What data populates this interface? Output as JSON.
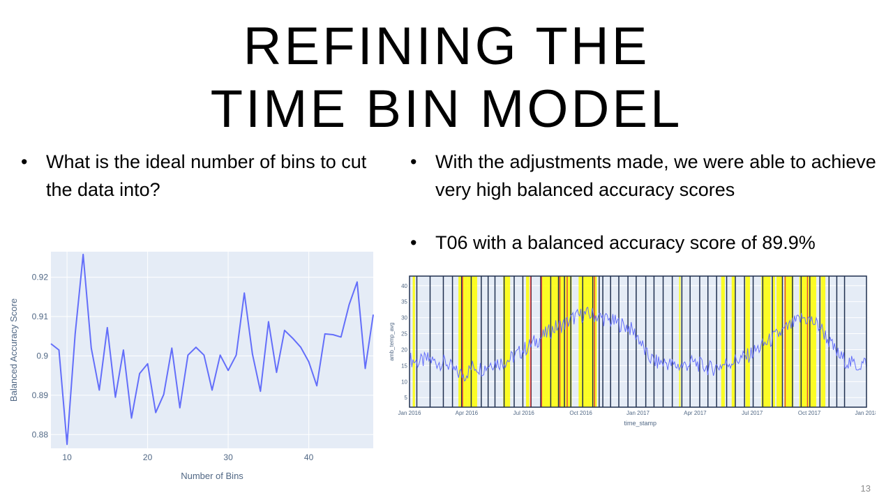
{
  "slide": {
    "title_line1": "REFINING THE",
    "title_line2": "TIME BIN MODEL",
    "left_bullets": [
      "What is the ideal number of bins to cut the data into?"
    ],
    "right_bullets": [
      "With the adjustments made, we were able to achieve very high balanced accuracy scores",
      "T06 with a balanced accuracy score of 89.9%"
    ],
    "slide_number": "13"
  },
  "chart_data": [
    {
      "type": "line",
      "xlabel": "Number of Bins",
      "ylabel": "Balanced Accuracy Score",
      "xlim": [
        8,
        48
      ],
      "ylim": [
        0.8765,
        0.9265
      ],
      "x_ticks": [
        10,
        20,
        30,
        40
      ],
      "y_ticks": [
        0.88,
        0.89,
        0.9,
        0.91,
        0.92
      ],
      "background": "#e5ecf6",
      "line_color": "#636efa",
      "x": [
        8,
        9,
        10,
        11,
        12,
        13,
        14,
        15,
        16,
        17,
        18,
        19,
        20,
        21,
        22,
        23,
        24,
        25,
        26,
        27,
        28,
        29,
        30,
        31,
        32,
        33,
        34,
        35,
        36,
        37,
        38,
        39,
        40,
        41,
        42,
        43,
        44,
        45,
        46,
        47,
        48
      ],
      "y": [
        0.9031,
        0.9015,
        0.8775,
        0.9055,
        0.9258,
        0.902,
        0.8913,
        0.9072,
        0.8895,
        0.9015,
        0.8842,
        0.8955,
        0.898,
        0.8856,
        0.8902,
        0.902,
        0.8868,
        0.9002,
        0.9022,
        0.9002,
        0.8913,
        0.9002,
        0.8963,
        0.9002,
        0.916,
        0.9005,
        0.891,
        0.9087,
        0.8958,
        0.9065,
        0.9045,
        0.9022,
        0.8985,
        0.8924,
        0.9056,
        0.9054,
        0.9048,
        0.913,
        0.9188,
        0.8968,
        0.9105
      ]
    },
    {
      "type": "line",
      "xlabel": "time_stamp",
      "ylabel": "amb_temp_avg",
      "xlim": [
        "2016-01-01",
        "2018-01-01"
      ],
      "ylim": [
        2,
        43
      ],
      "x_ticks": [
        "Jan 2016",
        "Apr 2016",
        "Jul 2016",
        "Oct 2016",
        "Jan 2017",
        "Apr 2017",
        "Jul 2017",
        "Oct 2017",
        "Jan 2018"
      ],
      "y_ticks": [
        5,
        10,
        15,
        20,
        25,
        30,
        35,
        40
      ],
      "background": "#e5ecf6",
      "line_color": "#636efa",
      "highlight_color": "#ffff00",
      "bin_line_color": "#1f2f4f",
      "alert_line_color": "#e0453a",
      "x": [
        0.0,
        0.02,
        0.04,
        0.06,
        0.08,
        0.1,
        0.12,
        0.14,
        0.16,
        0.18,
        0.2,
        0.22,
        0.24,
        0.26,
        0.28,
        0.3,
        0.32,
        0.34,
        0.36,
        0.38,
        0.4,
        0.42,
        0.44,
        0.46,
        0.48,
        0.5,
        0.52,
        0.54,
        0.56,
        0.58,
        0.6,
        0.62,
        0.64,
        0.66,
        0.68,
        0.7,
        0.72,
        0.74,
        0.76,
        0.78,
        0.8,
        0.82,
        0.84,
        0.86,
        0.88,
        0.9,
        0.92,
        0.94,
        0.96,
        0.98,
        1.0
      ],
      "y": [
        17,
        16,
        17,
        16,
        16,
        13,
        12,
        15,
        14,
        16,
        16,
        17,
        19,
        21,
        23,
        25,
        27,
        28,
        30,
        31,
        31,
        30,
        29,
        28,
        27,
        24,
        18,
        16,
        16,
        15,
        15,
        16,
        15,
        14,
        15,
        16,
        17,
        18,
        20,
        22,
        24,
        26,
        28,
        30,
        29,
        27,
        22,
        18,
        16,
        15,
        16
      ],
      "highlight_bands": [
        [
          0.007,
          0.012
        ],
        [
          0.107,
          0.128
        ],
        [
          0.128,
          0.148
        ],
        [
          0.205,
          0.22
        ],
        [
          0.255,
          0.262
        ],
        [
          0.288,
          0.335
        ],
        [
          0.335,
          0.355
        ],
        [
          0.37,
          0.39
        ],
        [
          0.39,
          0.41
        ],
        [
          0.59,
          0.593
        ],
        [
          0.682,
          0.69
        ],
        [
          0.705,
          0.712
        ],
        [
          0.735,
          0.745
        ],
        [
          0.77,
          0.79
        ],
        [
          0.795,
          0.8
        ],
        [
          0.803,
          0.816
        ],
        [
          0.82,
          0.84
        ],
        [
          0.853,
          0.89
        ],
        [
          0.9,
          0.91
        ]
      ],
      "bin_boundaries": [
        0.016,
        0.045,
        0.074,
        0.094,
        0.114,
        0.135,
        0.157,
        0.172,
        0.187,
        0.207,
        0.229,
        0.248,
        0.266,
        0.287,
        0.309,
        0.326,
        0.339,
        0.353,
        0.379,
        0.401,
        0.415,
        0.423,
        0.44,
        0.458,
        0.478,
        0.496,
        0.517,
        0.535,
        0.555,
        0.575,
        0.596,
        0.614,
        0.635,
        0.653,
        0.672,
        0.694,
        0.713,
        0.733,
        0.752,
        0.773,
        0.794,
        0.816,
        0.838,
        0.857,
        0.876,
        0.898,
        0.918,
        0.935,
        0.952
      ],
      "alert_lines": [
        0.116,
        0.265,
        0.289,
        0.329,
        0.345,
        0.405,
        0.822,
        0.871
      ]
    }
  ]
}
